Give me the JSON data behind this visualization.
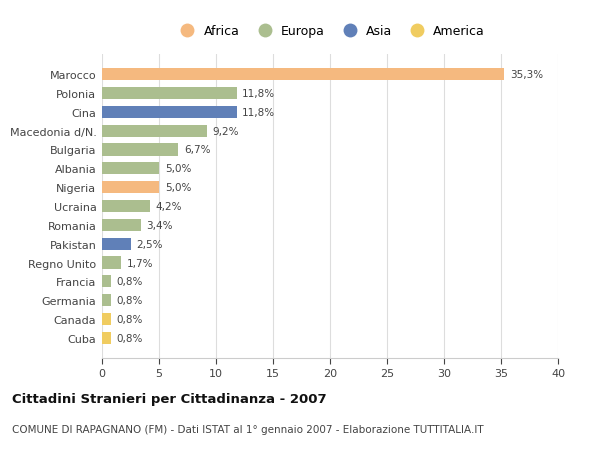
{
  "countries": [
    "Marocco",
    "Polonia",
    "Cina",
    "Macedonia d/N.",
    "Bulgaria",
    "Albania",
    "Nigeria",
    "Ucraina",
    "Romania",
    "Pakistan",
    "Regno Unito",
    "Francia",
    "Germania",
    "Canada",
    "Cuba"
  ],
  "values": [
    35.3,
    11.8,
    11.8,
    9.2,
    6.7,
    5.0,
    5.0,
    4.2,
    3.4,
    2.5,
    1.7,
    0.8,
    0.8,
    0.8,
    0.8
  ],
  "labels": [
    "35,3%",
    "11,8%",
    "11,8%",
    "9,2%",
    "6,7%",
    "5,0%",
    "5,0%",
    "4,2%",
    "3,4%",
    "2,5%",
    "1,7%",
    "0,8%",
    "0,8%",
    "0,8%",
    "0,8%"
  ],
  "continents": [
    "Africa",
    "Europa",
    "Asia",
    "Europa",
    "Europa",
    "Europa",
    "Africa",
    "Europa",
    "Europa",
    "Asia",
    "Europa",
    "Europa",
    "Europa",
    "America",
    "America"
  ],
  "colors": {
    "Africa": "#F5B97F",
    "Europa": "#ABBE8F",
    "Asia": "#6080B8",
    "America": "#F0CC60"
  },
  "title": "Cittadini Stranieri per Cittadinanza - 2007",
  "subtitle": "COMUNE DI RAPAGNANO (FM) - Dati ISTAT al 1° gennaio 2007 - Elaborazione TUTTITALIA.IT",
  "xlim": [
    0,
    40
  ],
  "xticks": [
    0,
    5,
    10,
    15,
    20,
    25,
    30,
    35,
    40
  ],
  "background_color": "#ffffff",
  "bar_height": 0.65,
  "grid_color": "#dddddd"
}
